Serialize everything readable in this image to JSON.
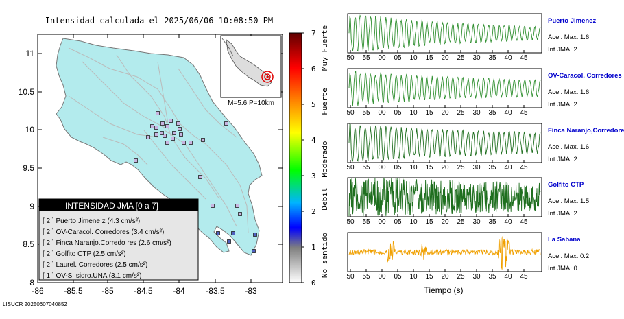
{
  "title": "Intensidad calculada el 2025/06/06_10:08:50_PM",
  "footer_id": "LISUCR 20250607040852",
  "map": {
    "lat_ticks": [
      "11",
      "10.5",
      "10",
      "9.5",
      "9",
      "8.5",
      "8"
    ],
    "lon_ticks": [
      "-86",
      "-85.5",
      "-85",
      "-84.5",
      "-84",
      "-83.5",
      "-83"
    ],
    "land_color": "#b3ebed",
    "inset_label": "M=5.6 P=10km"
  },
  "colorbar": {
    "ticks": [
      "0",
      "1",
      "2",
      "3",
      "4",
      "5",
      "6",
      "7"
    ],
    "labels": [
      "No sentido",
      "Debil",
      "Moderado",
      "Fuerte",
      "Muy Fuerte"
    ],
    "colors": [
      "#ffffff",
      "#7f7f7f",
      "#0000ff",
      "#00b4ff",
      "#00ff00",
      "#ffff00",
      "#ff8c00",
      "#ff0000",
      "#7f0000"
    ]
  },
  "legend": {
    "title": "INTENSIDAD JMA [0 a 7]",
    "items": [
      "[ 2 ]  Puerto Jimene z (4.3 cm/s²)",
      "[ 2 ]  OV-Caracol. Corredores (3.4 cm/s²)",
      "[ 2 ]  Finca Naranjo.Corredo res (2.6 cm/s²)",
      "[ 2 ]  Golfito CTP (2.5 cm/s²)",
      "[ 2 ]  Laurel. Corredores (2.5 cm/s²)",
      "[ 1 ]  OV-S Isidro.UNA (3.1 cm/s²)"
    ]
  },
  "chart_data": {
    "type": "line",
    "x_label": "Tiempo (s)",
    "x_ticks": [
      "50",
      "55",
      "00",
      "05",
      "10",
      "15",
      "20",
      "25",
      "30",
      "35",
      "40",
      "45"
    ],
    "series": [
      {
        "name": "Puerto Jimenez",
        "accel": "Acel. Max. 1.6",
        "jma": "Int JMA: 2",
        "color": "#2f8f2f"
      },
      {
        "name": "OV-Caracol, Corredores",
        "accel": "Acel. Max. 1.6",
        "jma": "Int JMA: 2",
        "color": "#2f8f2f"
      },
      {
        "name": "Finca Naranjo,Corredores",
        "accel": "Acel. Max. 1.6",
        "jma": "Int JMA: 2",
        "color": "#1f6f1f"
      },
      {
        "name": "Golfito CTP",
        "accel": "Acel. Max. 1.5",
        "jma": "Int JMA: 2",
        "color": "#1f6f1f"
      },
      {
        "name": "La Sabana",
        "accel": "Acel. Max. 0.2",
        "jma": "Int JMA: 0",
        "color": "#f0a000"
      }
    ]
  }
}
